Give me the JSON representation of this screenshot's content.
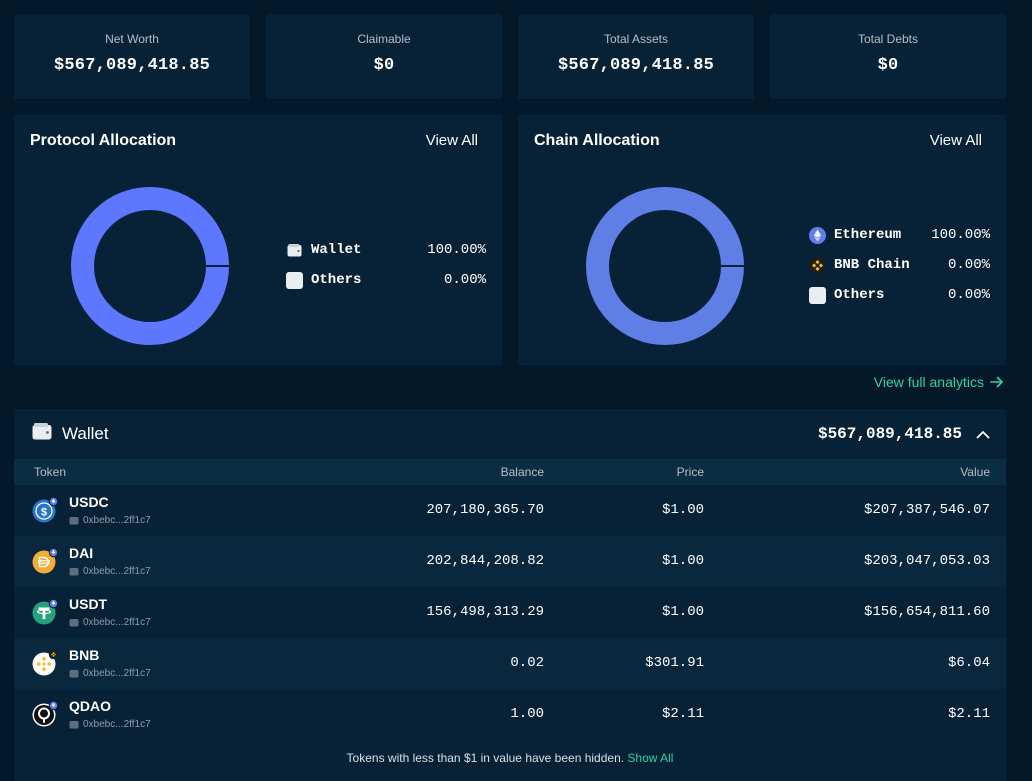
{
  "summary": [
    {
      "label": "Net Worth",
      "value": "$567,089,418.85"
    },
    {
      "label": "Claimable",
      "value": "$0"
    },
    {
      "label": "Total Assets",
      "value": "$567,089,418.85"
    },
    {
      "label": "Total Debts",
      "value": "$0"
    }
  ],
  "protocol_allocation": {
    "title": "Protocol Allocation",
    "view_all": "View All",
    "ring_color": "#5d78ff",
    "items": [
      {
        "name": "Wallet",
        "pct": "100.00%",
        "icon": "wallet-icon"
      },
      {
        "name": "Others",
        "pct": "0.00%",
        "icon": "others-swatch"
      }
    ]
  },
  "chain_allocation": {
    "title": "Chain Allocation",
    "view_all": "View All",
    "ring_color": "#5f7fe6",
    "items": [
      {
        "name": "Ethereum",
        "pct": "100.00%",
        "icon": "ethereum-icon"
      },
      {
        "name": "BNB Chain",
        "pct": "0.00%",
        "icon": "bnb-chain-icon"
      },
      {
        "name": "Others",
        "pct": "0.00%",
        "icon": "others-swatch"
      }
    ]
  },
  "analytics_link": "View full analytics",
  "wallet": {
    "title": "Wallet",
    "total": "$567,089,418.85",
    "columns": {
      "token": "Token",
      "balance": "Balance",
      "price": "Price",
      "value": "Value"
    },
    "rows": [
      {
        "symbol": "USDC",
        "address": "0xbebc...2ff1c7",
        "balance": "207,180,365.70",
        "price": "$1.00",
        "value": "$207,387,546.07",
        "icon": "usdc-icon"
      },
      {
        "symbol": "DAI",
        "address": "0xbebc...2ff1c7",
        "balance": "202,844,208.82",
        "price": "$1.00",
        "value": "$203,047,053.03",
        "icon": "dai-icon"
      },
      {
        "symbol": "USDT",
        "address": "0xbebc...2ff1c7",
        "balance": "156,498,313.29",
        "price": "$1.00",
        "value": "$156,654,811.60",
        "icon": "usdt-icon"
      },
      {
        "symbol": "BNB",
        "address": "0xbebc...2ff1c7",
        "balance": "0.02",
        "price": "$301.91",
        "value": "$6.04",
        "icon": "bnb-icon"
      },
      {
        "symbol": "QDAO",
        "address": "0xbebc...2ff1c7",
        "balance": "1.00",
        "price": "$2.11",
        "value": "$2.11",
        "icon": "qdao-icon"
      }
    ],
    "footer_text": "Tokens with less than $1 in value have been hidden.",
    "footer_link": "Show All"
  },
  "colors": {
    "background": "#03192a",
    "panel": "#072236",
    "accent_green": "#2ed3a0",
    "ethereum": "#627eea",
    "bnb": "#f3ba2f",
    "usdc": "#2775ca",
    "dai": "#f5ac37",
    "usdt": "#26a17b"
  }
}
